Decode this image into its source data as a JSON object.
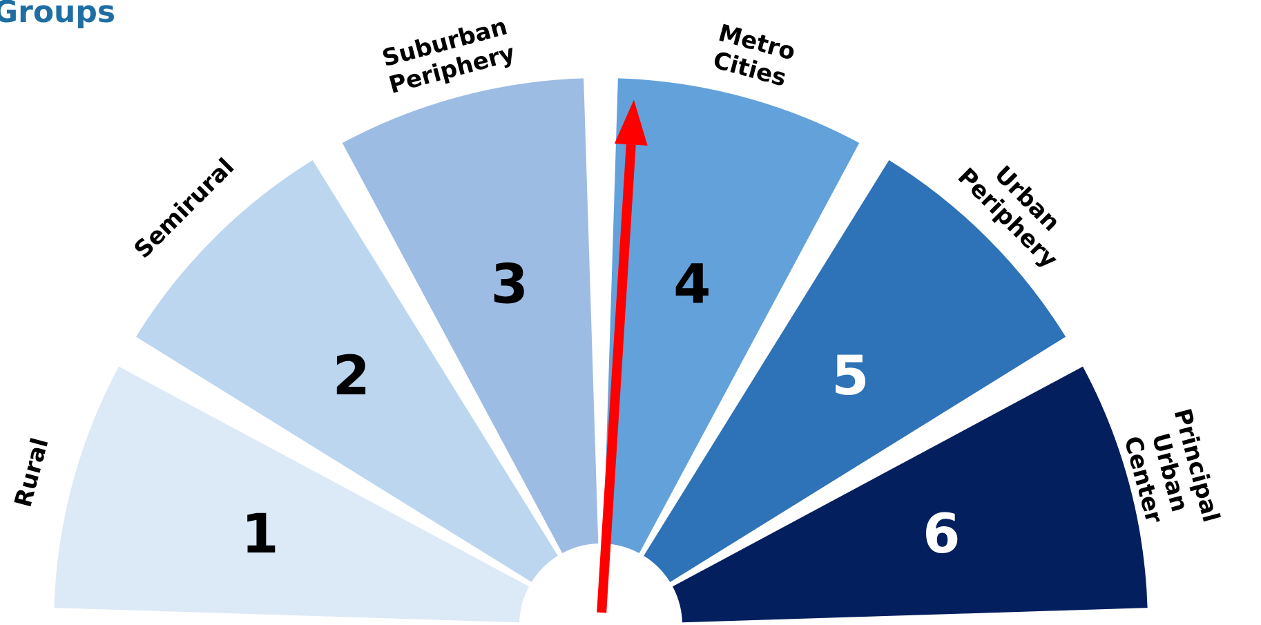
{
  "title": "Groups",
  "colors": {
    "title": "#1f6ea3",
    "pointer": "#ff0000",
    "gap": "#ffffff"
  },
  "segments": [
    {
      "number": "1",
      "label_lines": [
        "Rural"
      ],
      "fill": "#dce9f7",
      "number_color": "#000000"
    },
    {
      "number": "2",
      "label_lines": [
        "Semirural"
      ],
      "fill": "#bcd6f0",
      "number_color": "#000000"
    },
    {
      "number": "3",
      "label_lines": [
        "Suburban",
        "Periphery"
      ],
      "fill": "#9dbce3",
      "number_color": "#000000"
    },
    {
      "number": "4",
      "label_lines": [
        "Metro",
        "Cities"
      ],
      "fill": "#63a1da",
      "number_color": "#000000"
    },
    {
      "number": "5",
      "label_lines": [
        "Urban",
        "Periphery"
      ],
      "fill": "#2e72b7",
      "number_color": "#ffffff"
    },
    {
      "number": "6",
      "label_lines": [
        "Principal",
        "Urban",
        "Center"
      ],
      "fill": "#041f5e",
      "number_color": "#ffffff"
    }
  ],
  "pointer": {
    "segment": 4,
    "description": "needle pointing into segment 4"
  }
}
